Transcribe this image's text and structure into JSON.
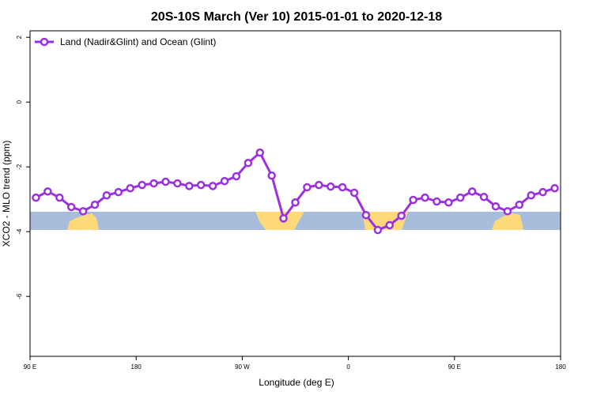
{
  "chart_data": {
    "type": "line",
    "title": "20S-10S March (Ver 10)   2015-01-01 to 2020-12-18",
    "x_label": "Longitude (deg E)",
    "y_label": "XCO2 - MLO trend (ppm)",
    "xlim": [
      90,
      540
    ],
    "xticks": [
      {
        "value": 90,
        "label": "90 E"
      },
      180,
      {
        "value": 270,
        "label": "90 W"
      },
      {
        "value": 360,
        "label": "0"
      },
      {
        "value": 450,
        "label": "90 E"
      },
      {
        "value": 540,
        "label": "180"
      }
    ],
    "ylim": [
      -7.85,
      2.2
    ],
    "yticks": [
      2,
      0,
      -2,
      -4,
      -6
    ],
    "legend": "top-left",
    "x": [
      95,
      105,
      115,
      125,
      135,
      145,
      155,
      165,
      175,
      185,
      195,
      205,
      215,
      225,
      235,
      245,
      255,
      265,
      275,
      285,
      295,
      305,
      315,
      325,
      335,
      345,
      355,
      365,
      375,
      385,
      395,
      405,
      415,
      425,
      435,
      445,
      455,
      465,
      475,
      485,
      495,
      505,
      515,
      525,
      535
    ],
    "series": [
      {
        "name": "Land (Nadir&Glint) and Ocean (Glint)",
        "color": "#9b30e0",
        "values": [
          -2.95,
          -2.76,
          -2.95,
          -3.24,
          -3.37,
          -3.17,
          -2.88,
          -2.78,
          -2.66,
          -2.56,
          -2.51,
          -2.46,
          -2.51,
          -2.59,
          -2.56,
          -2.59,
          -2.44,
          -2.29,
          -1.88,
          -1.56,
          -2.27,
          -3.59,
          -3.1,
          -2.63,
          -2.56,
          -2.61,
          -2.63,
          -2.8,
          -3.49,
          -3.95,
          -3.8,
          -3.51,
          -3.02,
          -2.95,
          -3.07,
          -3.1,
          -2.95,
          -2.76,
          -2.93,
          -3.22,
          -3.37,
          -3.17,
          -2.88,
          -2.78,
          -2.66
        ]
      }
    ]
  }
}
